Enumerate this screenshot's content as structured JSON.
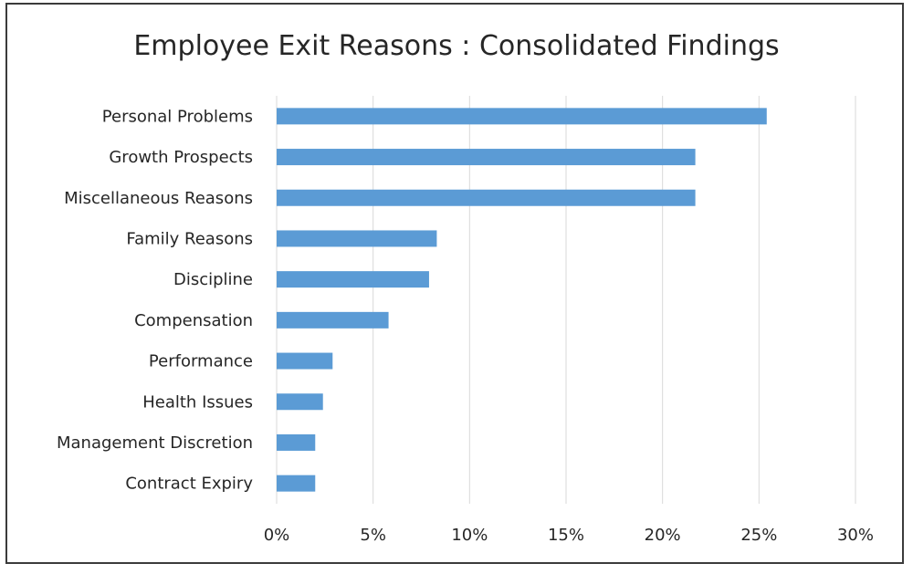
{
  "chart_data": {
    "type": "bar",
    "orientation": "horizontal",
    "title": "Employee Exit Reasons : Consolidated Findings",
    "xlabel": "",
    "ylabel": "",
    "categories": [
      "Personal Problems",
      "Growth Prospects",
      "Miscellaneous Reasons",
      "Family Reasons",
      "Discipline",
      "Compensation",
      "Performance",
      "Health Issues",
      "Management Discretion",
      "Contract Expiry"
    ],
    "values": [
      25.4,
      21.7,
      21.7,
      8.3,
      7.9,
      5.8,
      2.9,
      2.4,
      2.0,
      2.0
    ],
    "xlim": [
      0,
      30
    ],
    "xticks": [
      0,
      5,
      10,
      15,
      20,
      25,
      30
    ],
    "xtick_labels": [
      "0%",
      "5%",
      "10%",
      "15%",
      "20%",
      "25%",
      "30%"
    ],
    "grid": "vertical",
    "legend": "none",
    "bar_color": "#5b9bd5",
    "grid_color": "#d9d9d9"
  }
}
